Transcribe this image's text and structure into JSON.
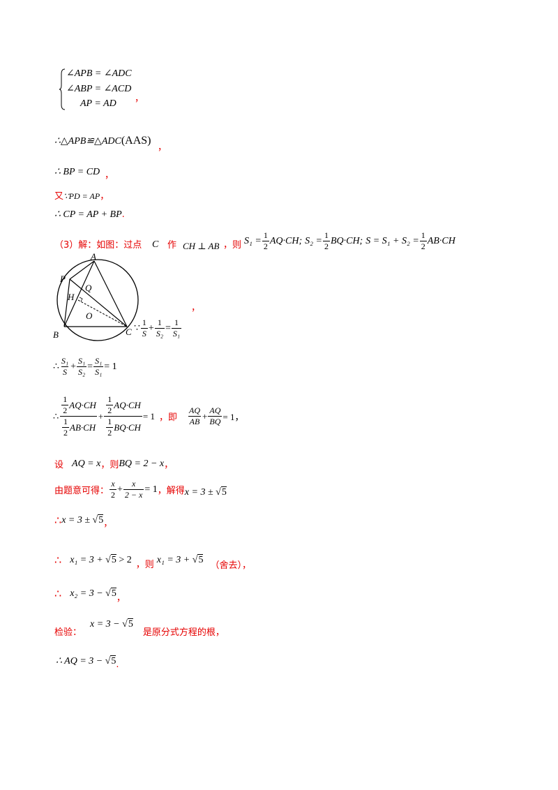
{
  "system": {
    "line1": "∠APB = ∠ADC",
    "line2": "∠ABP = ∠ACD",
    "line3": "AP = AD",
    "after": "，"
  },
  "congruence": {
    "text": "∴△APB≌△ADC",
    "tag": "(AAS)",
    "after": "，"
  },
  "bp_cd": {
    "text": "∴ BP = CD",
    "after": "，"
  },
  "pd_ap": {
    "prefix": "又",
    "text": "∵PD = AP",
    "after": "，"
  },
  "cp": {
    "text": "∴ CP = AP + BP",
    "after": "."
  },
  "part3": {
    "label": "（3）解：如图：过点",
    "c": "C",
    "zuo": "作",
    "perp": "CH ⊥ AB",
    "ze": "，则",
    "formula": {
      "s1": "S₁ =",
      "half": "1",
      "two": "2",
      "aqch": "AQ·CH;",
      "s2": "S₂ =",
      "bqch": "BQ·CH;",
      "s": "S = S₁ + S₂ =",
      "abch": "AB·CH"
    }
  },
  "figure": {
    "labels": {
      "P": "P",
      "A": "A",
      "Q": "Q",
      "H": "H",
      "O": "O",
      "B": "B",
      "C": "C"
    },
    "comma": "，"
  },
  "recip": {
    "because": "∵",
    "one": "1",
    "S": "S",
    "S2": "S₂",
    "S1": "S₁",
    "plus": "+",
    "eq": "="
  },
  "ratio_sum": {
    "therefore": "∴",
    "S1": "S₁",
    "S": "S",
    "S2": "S₂",
    "eq1": "= 1",
    "plus": "+",
    "eq": "="
  },
  "ratio_expand": {
    "therefore": "∴",
    "half": "1",
    "two": "2",
    "aqch": "AQ·CH",
    "abch": "AB·CH",
    "bqch": "BQ·CH",
    "eq1": "= 1",
    "ji": "，即",
    "aq": "AQ",
    "ab": "AB",
    "bq": "BQ",
    "end": "= 1，"
  },
  "setvar": {
    "she": "设",
    "aq": "AQ = x",
    "ze": "，则",
    "bq": "BQ = 2 − x",
    "after": "，"
  },
  "equation": {
    "label": "由题意可得：",
    "x": "x",
    "two": "2",
    "twominus": "2 − x",
    "eq1": "= 1",
    "jiede": "，解得",
    "sol": "x = 3 ±",
    "root": "5"
  },
  "sol1": {
    "dots": "∴",
    "text": "x = 3 ±",
    "root": "5",
    "after": "，"
  },
  "sol2": {
    "dots": "∴",
    "text": "x₁ = 3 +",
    "root": "5",
    "gt": "> 2",
    "ze": "，则",
    "text2": "x₁ = 3 +",
    "root2": "5",
    "reject": "（舍去），"
  },
  "sol3": {
    "dots": "∴",
    "text": "x₂ = 3 −",
    "root": "5",
    "after": "，"
  },
  "check": {
    "label": "检验：",
    "text": "x = 3 −",
    "root": "5",
    "note": "是原分式方程的根，"
  },
  "final": {
    "text": "∴ AQ = 3 −",
    "root": "5",
    "after": "."
  }
}
